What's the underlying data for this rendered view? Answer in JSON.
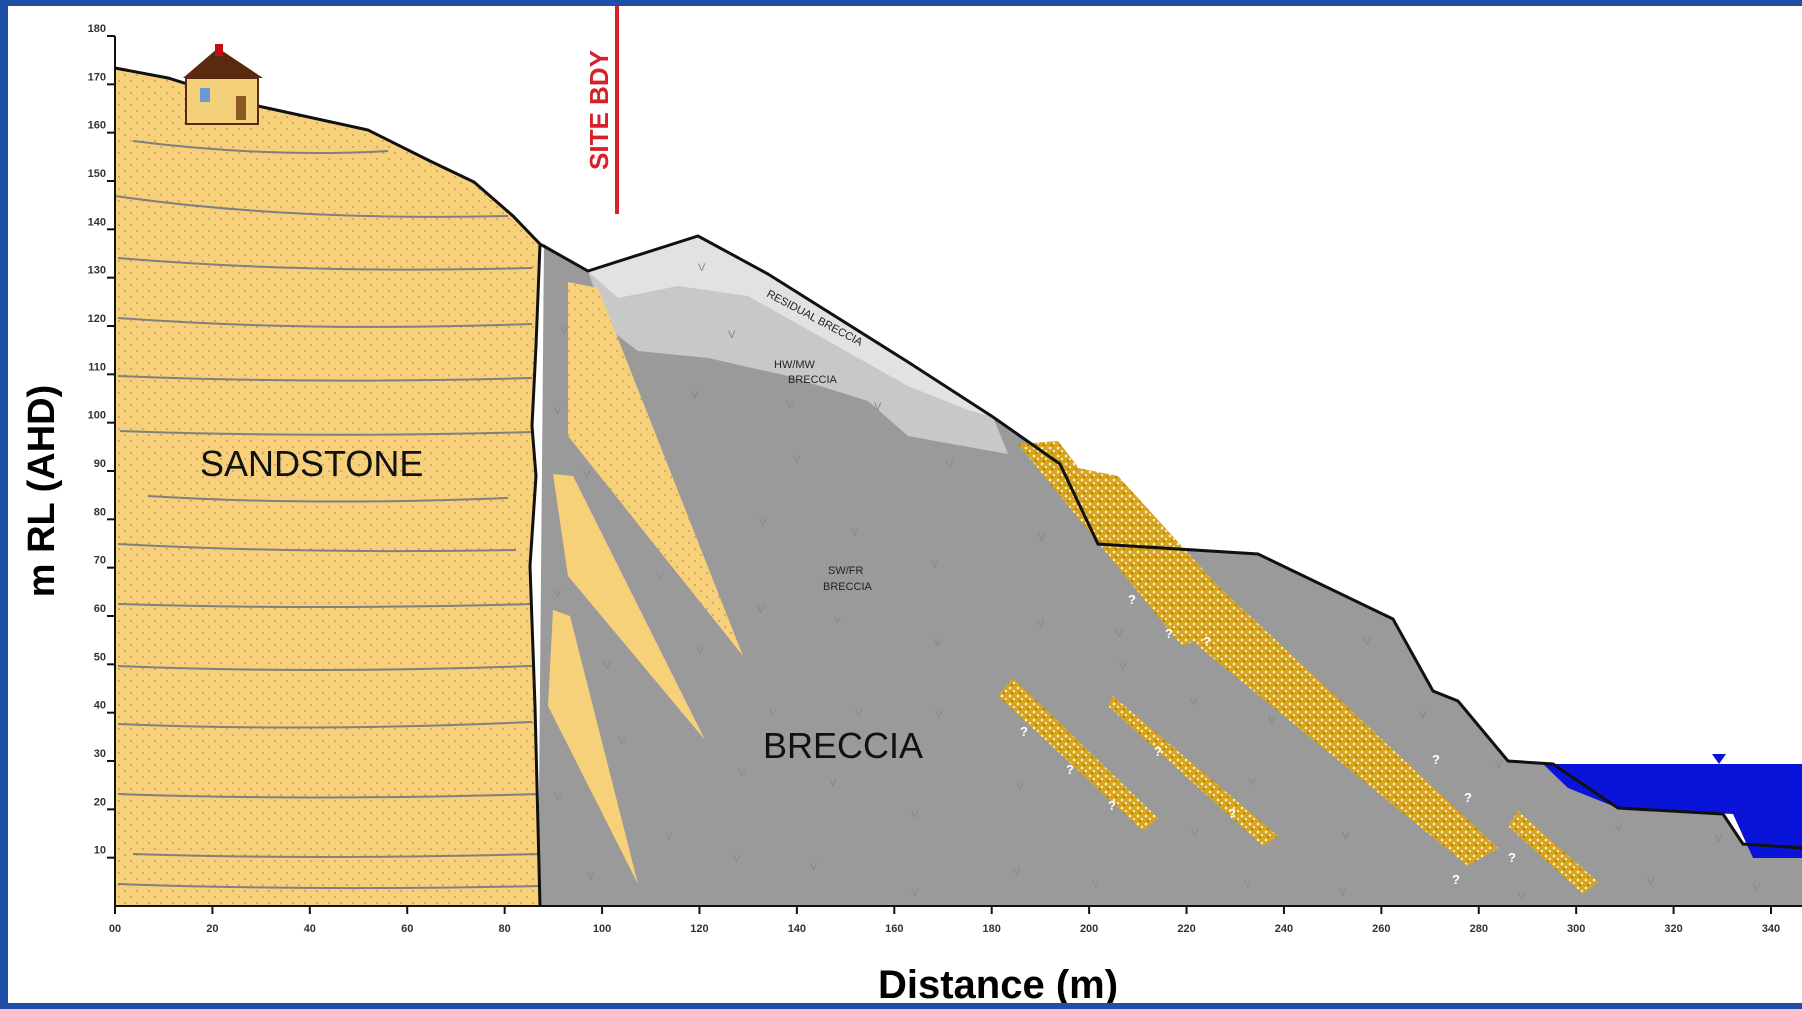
{
  "axes": {
    "ylabel": "m RL (AHD)",
    "xlabel": "Distance (m)",
    "y_ticks": [
      "10",
      "20",
      "30",
      "40",
      "50",
      "60",
      "70",
      "80",
      "90",
      "100",
      "110",
      "120",
      "130",
      "140",
      "150",
      "160",
      "170",
      "180"
    ],
    "x_ticks": [
      "00",
      "20",
      "40",
      "60",
      "80",
      "100",
      "120",
      "140",
      "160",
      "180",
      "200",
      "220",
      "240",
      "260",
      "280",
      "300",
      "320",
      "340"
    ]
  },
  "labels": {
    "sandstone": "SANDSTONE",
    "breccia": "BRECCIA",
    "site_bdy": "SITE BDY",
    "residual": "RESIDUAL BRECCIA",
    "hwmw_1": "HW/MW",
    "hwmw_2": "BRECCIA",
    "swfr_1": "SW/FR",
    "swfr_2": "BRECCIA",
    "v": "V",
    "q": "?"
  },
  "colors": {
    "background_frame": "#1f4fa6",
    "sandstone": "#f7d07a",
    "breccia": "#9a9a9a",
    "hwmw": "#c8c8c8",
    "residual": "#e2e2e2",
    "dyke": "#d8a826",
    "water": "#0a14d8",
    "site_bdy": "#d6202a"
  }
}
